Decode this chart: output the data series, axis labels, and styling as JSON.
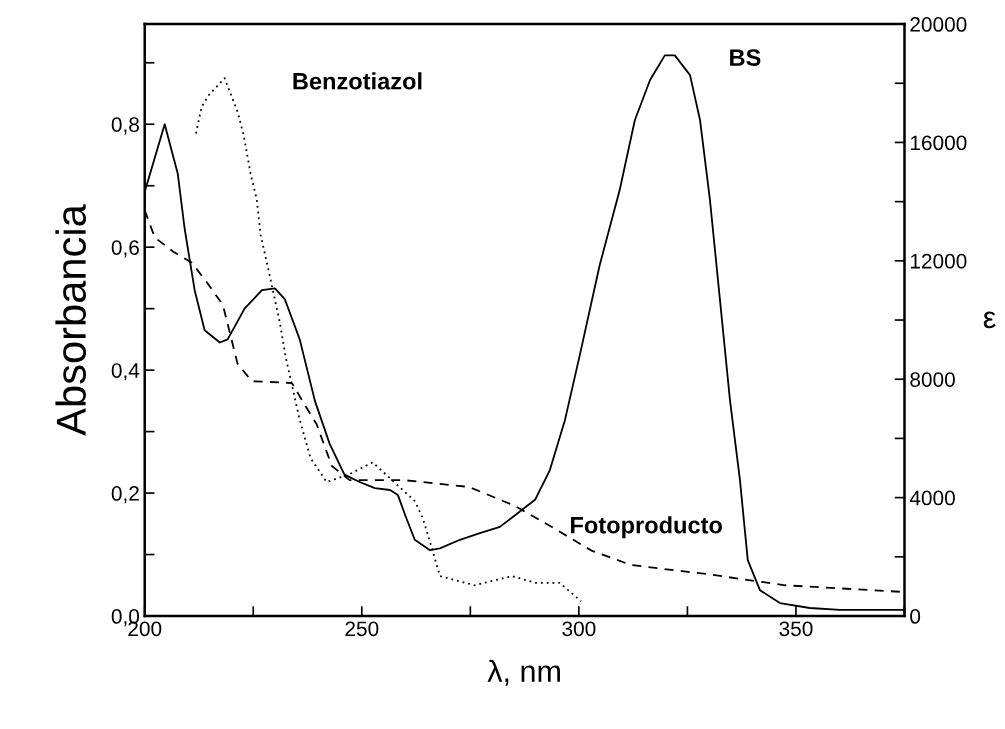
{
  "chart_data": {
    "type": "line",
    "xlabel": "λ, nm",
    "ylabel": "Absorbancia",
    "y2label": "ε",
    "xlim": [
      200,
      375
    ],
    "xticks": [
      200,
      {
        "value": 225,
        "label": null
      },
      250,
      {
        "value": 275,
        "label": null
      },
      300,
      {
        "value": 325,
        "label": null
      },
      350,
      {
        "value": 375,
        "label": null
      }
    ],
    "ylim": [
      0,
      0.963
    ],
    "yticks": [
      {
        "value": 0,
        "label": "0,0"
      },
      {
        "value": 0.1,
        "label": null
      },
      {
        "value": 0.2,
        "label": "0,2"
      },
      {
        "value": 0.3,
        "label": null
      },
      {
        "value": 0.4,
        "label": "0,4"
      },
      {
        "value": 0.5,
        "label": null
      },
      {
        "value": 0.6,
        "label": "0,6"
      },
      {
        "value": 0.7,
        "label": null
      },
      {
        "value": 0.8,
        "label": "0,8"
      },
      {
        "value": 0.9,
        "label": null
      }
    ],
    "y2lim": [
      0,
      20000
    ],
    "y2ticks": [
      0,
      {
        "value": 2000,
        "label": null
      },
      4000,
      {
        "value": 6000,
        "label": null
      },
      8000,
      {
        "value": 10000,
        "label": null
      },
      12000,
      {
        "value": 14000,
        "label": null
      },
      16000,
      {
        "value": 18000,
        "label": null
      },
      20000
    ],
    "grid": false,
    "marker": "none",
    "series": [
      {
        "name": "BS",
        "color": "#000000",
        "line_style": "solid",
        "x": [
          200,
          204.6,
          207.6,
          209.2,
          211.5,
          213.8,
          217.3,
          219.1,
          223,
          227,
          230,
          232.3,
          235.7,
          239.2,
          242.6,
          246,
          249.5,
          253,
          256.5,
          258.3,
          260,
          262.2,
          265.7,
          268,
          272.6,
          277.2,
          281.8,
          285.3,
          289.9,
          293.3,
          296.8,
          300.2,
          304.8,
          309.4,
          312.9,
          316.4,
          319.8,
          322.1,
          325.6,
          327.9,
          330.2,
          332.5,
          334.8,
          337.1,
          338.9,
          341.7,
          346.3,
          353.2,
          360.1,
          375
        ],
        "values": [
          0.69,
          0.8,
          0.72,
          0.63,
          0.53,
          0.465,
          0.445,
          0.45,
          0.5,
          0.53,
          0.533,
          0.515,
          0.45,
          0.35,
          0.28,
          0.23,
          0.218,
          0.208,
          0.205,
          0.197,
          0.164,
          0.124,
          0.107,
          0.11,
          0.124,
          0.135,
          0.145,
          0.164,
          0.189,
          0.237,
          0.319,
          0.424,
          0.571,
          0.693,
          0.807,
          0.872,
          0.912,
          0.912,
          0.88,
          0.807,
          0.676,
          0.514,
          0.351,
          0.221,
          0.091,
          0.042,
          0.021,
          0.013,
          0.01,
          0.01
        ]
      },
      {
        "name": "Fotoproducto",
        "color": "#000000",
        "line_style": "dashed",
        "x": [
          200,
          202.3,
          206.5,
          210.8,
          214.3,
          218,
          221.4,
          224.7,
          233.9,
          236.9,
          239.6,
          243.1,
          247.2,
          259.7,
          274.7,
          285.3,
          294.2,
          303,
          312,
          329.7,
          347.5,
          375
        ],
        "values": [
          0.66,
          0.616,
          0.593,
          0.575,
          0.543,
          0.506,
          0.41,
          0.382,
          0.379,
          0.343,
          0.312,
          0.244,
          0.221,
          0.221,
          0.21,
          0.179,
          0.143,
          0.106,
          0.083,
          0.068,
          0.05,
          0.039
        ]
      },
      {
        "name": "Benzotiazol",
        "color": "#000000",
        "line_style": "dotted",
        "x": [
          211.8,
          213.1,
          214.7,
          218.4,
          221.4,
          222.8,
          224.4,
          225.8,
          226.7,
          228.6,
          231.1,
          232.5,
          235.7,
          238.2,
          241.9,
          247,
          252.5,
          262.2,
          264,
          265.4,
          268,
          276,
          284.6,
          289.9,
          295.6,
          300.5
        ],
        "values": [
          0.785,
          0.828,
          0.847,
          0.875,
          0.82,
          0.782,
          0.719,
          0.678,
          0.62,
          0.56,
          0.478,
          0.42,
          0.319,
          0.257,
          0.218,
          0.23,
          0.25,
          0.187,
          0.16,
          0.128,
          0.065,
          0.05,
          0.065,
          0.054,
          0.054,
          0.024
        ]
      }
    ]
  }
}
